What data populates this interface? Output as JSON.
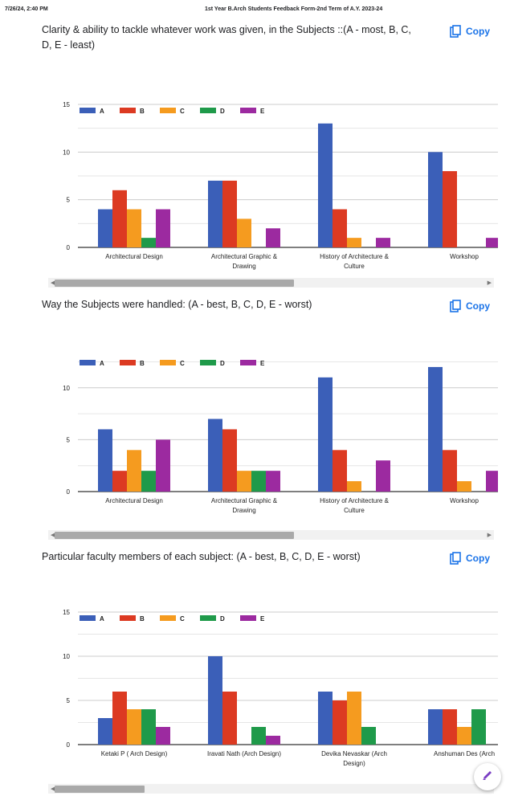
{
  "header": {
    "timestamp": "7/26/24, 2:40 PM",
    "doc_title": "1st Year B.Arch Students Feedback Form-2nd Term of A.Y. 2023-24"
  },
  "copy_label": "Copy",
  "colors": {
    "A": "#3b5fb8",
    "B": "#dc3a22",
    "C": "#f59b1f",
    "D": "#1f9a4a",
    "E": "#9c2aa0",
    "grid": "#cccccc",
    "accent": "#1a73e8"
  },
  "cards": [
    {
      "title": "Clarity & ability to tackle whatever work was given, in the Subjects ::(A - most, B, C, D, E - least)",
      "chart_data": {
        "type": "bar",
        "categories": [
          "Architectural Design",
          "Architectural Graphic & Drawing",
          "History of Architecture & Culture",
          "Workshop"
        ],
        "series": [
          {
            "name": "A",
            "values": [
              4,
              7,
              13,
              10
            ]
          },
          {
            "name": "B",
            "values": [
              6,
              7,
              4,
              8
            ]
          },
          {
            "name": "C",
            "values": [
              4,
              3,
              1,
              0
            ]
          },
          {
            "name": "D",
            "values": [
              1,
              0,
              0,
              0
            ]
          },
          {
            "name": "E",
            "values": [
              4,
              2,
              1,
              1
            ]
          }
        ],
        "yticks": [
          0,
          5,
          10,
          15
        ],
        "ylim": [
          0,
          15
        ],
        "legend": "top-left",
        "grid": true
      }
    },
    {
      "title": "Way the Subjects were handled:  (A - best, B, C, D, E - worst)",
      "chart_data": {
        "type": "bar",
        "categories": [
          "Architectural Design",
          "Architectural Graphic & Drawing",
          "History of Architecture & Culture",
          "Workshop"
        ],
        "series": [
          {
            "name": "A",
            "values": [
              6,
              7,
              11,
              12
            ]
          },
          {
            "name": "B",
            "values": [
              2,
              6,
              4,
              4
            ]
          },
          {
            "name": "C",
            "values": [
              4,
              2,
              1,
              1
            ]
          },
          {
            "name": "D",
            "values": [
              2,
              2,
              0,
              0
            ]
          },
          {
            "name": "E",
            "values": [
              5,
              2,
              3,
              2
            ]
          }
        ],
        "yticks": [
          0,
          5,
          10
        ],
        "ylim": [
          0,
          13
        ],
        "legend": "top-left",
        "grid": true
      }
    },
    {
      "title": "Particular faculty members of each subject: (A - best, B, C, D, E - worst)",
      "chart_data": {
        "type": "bar",
        "categories": [
          "Ketaki P ( Arch Design)",
          "Iravati Nath (Arch Design)",
          "Devika Nevaskar (Arch Design)",
          "Anshuman Des (Arch"
        ],
        "series": [
          {
            "name": "A",
            "values": [
              3,
              10,
              6,
              4
            ]
          },
          {
            "name": "B",
            "values": [
              6,
              6,
              5,
              4
            ]
          },
          {
            "name": "C",
            "values": [
              4,
              0,
              6,
              2
            ]
          },
          {
            "name": "D",
            "values": [
              4,
              2,
              2,
              4
            ]
          },
          {
            "name": "E",
            "values": [
              2,
              1,
              0,
              0
            ]
          }
        ],
        "yticks": [
          0,
          5,
          10,
          15
        ],
        "ylim": [
          0,
          15
        ],
        "legend": "top-left",
        "grid": true
      }
    }
  ]
}
